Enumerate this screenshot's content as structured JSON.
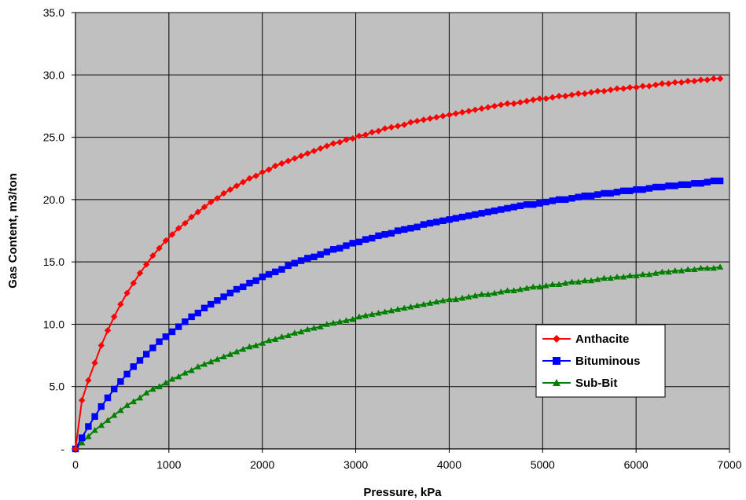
{
  "chart_data": {
    "type": "line",
    "title": "",
    "xlabel": "Pressure, kPa",
    "ylabel": "Gas Content, m3/ton",
    "xlim": [
      0,
      7000
    ],
    "ylim": [
      0,
      35
    ],
    "x_ticks": [
      0,
      1000,
      2000,
      3000,
      4000,
      5000,
      6000,
      7000
    ],
    "x_tick_labels": [
      "0",
      "1000",
      "2000",
      "3000",
      "4000",
      "5000",
      "6000",
      "7000"
    ],
    "y_ticks": [
      0,
      5,
      10,
      15,
      20,
      25,
      30,
      35
    ],
    "y_tick_labels": [
      "-",
      "5.0",
      "10.0",
      "15.0",
      "20.0",
      "25.0",
      "30.0",
      "35.0"
    ],
    "grid": true,
    "plot_background": "#c0c0c0",
    "legend_position": "lower-right",
    "series": [
      {
        "name": "Anthacite",
        "color": "#ff0000",
        "marker": "diamond",
        "x": [
          0,
          69,
          138,
          207,
          276,
          345,
          414,
          483,
          552,
          621,
          690,
          759,
          828,
          897,
          966,
          1035,
          1104,
          1173,
          1242,
          1311,
          1380,
          1449,
          1518,
          1587,
          1656,
          1725,
          1794,
          1863,
          1932,
          2001,
          2070,
          2139,
          2208,
          2277,
          2346,
          2415,
          2484,
          2553,
          2622,
          2691,
          2760,
          2829,
          2898,
          2967,
          3036,
          3105,
          3174,
          3243,
          3312,
          3381,
          3450,
          3519,
          3588,
          3657,
          3726,
          3795,
          3864,
          3933,
          4002,
          4071,
          4140,
          4209,
          4278,
          4347,
          4416,
          4485,
          4554,
          4623,
          4692,
          4761,
          4830,
          4899,
          4968,
          5037,
          5106,
          5175,
          5244,
          5313,
          5382,
          5451,
          5520,
          5589,
          5658,
          5727,
          5796,
          5865,
          5934,
          6003,
          6072,
          6141,
          6210,
          6279,
          6348,
          6417,
          6486,
          6555,
          6624,
          6693,
          6762,
          6831,
          6900
        ],
        "y": [
          0,
          3.9,
          5.5,
          6.9,
          8.3,
          9.5,
          10.6,
          11.6,
          12.5,
          13.3,
          14.1,
          14.8,
          15.5,
          16.1,
          16.7,
          17.2,
          17.7,
          18.1,
          18.6,
          19.0,
          19.4,
          19.8,
          20.1,
          20.5,
          20.8,
          21.1,
          21.4,
          21.7,
          21.9,
          22.2,
          22.4,
          22.7,
          22.9,
          23.1,
          23.3,
          23.5,
          23.7,
          23.9,
          24.1,
          24.3,
          24.5,
          24.6,
          24.8,
          24.9,
          25.1,
          25.2,
          25.4,
          25.5,
          25.7,
          25.8,
          25.9,
          26.0,
          26.2,
          26.3,
          26.4,
          26.5,
          26.6,
          26.7,
          26.8,
          26.9,
          27.0,
          27.1,
          27.2,
          27.3,
          27.4,
          27.5,
          27.6,
          27.7,
          27.7,
          27.8,
          27.9,
          28.0,
          28.1,
          28.1,
          28.2,
          28.3,
          28.3,
          28.4,
          28.5,
          28.5,
          28.6,
          28.7,
          28.7,
          28.8,
          28.9,
          28.9,
          29.0,
          29.0,
          29.1,
          29.1,
          29.2,
          29.3,
          29.3,
          29.4,
          29.4,
          29.5,
          29.5,
          29.6,
          29.6,
          29.7,
          29.7
        ]
      },
      {
        "name": "Bituminous",
        "color": "#0000ff",
        "marker": "square",
        "x": [
          0,
          69,
          138,
          207,
          276,
          345,
          414,
          483,
          552,
          621,
          690,
          759,
          828,
          897,
          966,
          1035,
          1104,
          1173,
          1242,
          1311,
          1380,
          1449,
          1518,
          1587,
          1656,
          1725,
          1794,
          1863,
          1932,
          2001,
          2070,
          2139,
          2208,
          2277,
          2346,
          2415,
          2484,
          2553,
          2622,
          2691,
          2760,
          2829,
          2898,
          2967,
          3036,
          3105,
          3174,
          3243,
          3312,
          3381,
          3450,
          3519,
          3588,
          3657,
          3726,
          3795,
          3864,
          3933,
          4002,
          4071,
          4140,
          4209,
          4278,
          4347,
          4416,
          4485,
          4554,
          4623,
          4692,
          4761,
          4830,
          4899,
          4968,
          5037,
          5106,
          5175,
          5244,
          5313,
          5382,
          5451,
          5520,
          5589,
          5658,
          5727,
          5796,
          5865,
          5934,
          6003,
          6072,
          6141,
          6210,
          6279,
          6348,
          6417,
          6486,
          6555,
          6624,
          6693,
          6762,
          6831,
          6900
        ],
        "y": [
          0,
          0.9,
          1.8,
          2.6,
          3.4,
          4.1,
          4.8,
          5.4,
          6.0,
          6.6,
          7.1,
          7.6,
          8.1,
          8.6,
          9.0,
          9.4,
          9.8,
          10.2,
          10.6,
          10.9,
          11.3,
          11.6,
          11.9,
          12.2,
          12.5,
          12.8,
          13.0,
          13.3,
          13.5,
          13.8,
          14.0,
          14.2,
          14.4,
          14.7,
          14.9,
          15.1,
          15.3,
          15.4,
          15.6,
          15.8,
          16.0,
          16.1,
          16.3,
          16.5,
          16.6,
          16.8,
          16.9,
          17.1,
          17.2,
          17.3,
          17.5,
          17.6,
          17.7,
          17.8,
          18.0,
          18.1,
          18.2,
          18.3,
          18.4,
          18.5,
          18.6,
          18.7,
          18.8,
          18.9,
          19.0,
          19.1,
          19.2,
          19.3,
          19.4,
          19.5,
          19.6,
          19.6,
          19.7,
          19.8,
          19.9,
          20.0,
          20.0,
          20.1,
          20.2,
          20.3,
          20.3,
          20.4,
          20.5,
          20.5,
          20.6,
          20.7,
          20.7,
          20.8,
          20.8,
          20.9,
          21.0,
          21.0,
          21.1,
          21.1,
          21.2,
          21.2,
          21.3,
          21.3,
          21.4,
          21.5,
          21.5
        ]
      },
      {
        "name": "Sub-Bit",
        "color": "#008000",
        "marker": "triangle",
        "x": [
          0,
          69,
          138,
          207,
          276,
          345,
          414,
          483,
          552,
          621,
          690,
          759,
          828,
          897,
          966,
          1035,
          1104,
          1173,
          1242,
          1311,
          1380,
          1449,
          1518,
          1587,
          1656,
          1725,
          1794,
          1863,
          1932,
          2001,
          2070,
          2139,
          2208,
          2277,
          2346,
          2415,
          2484,
          2553,
          2622,
          2691,
          2760,
          2829,
          2898,
          2967,
          3036,
          3105,
          3174,
          3243,
          3312,
          3381,
          3450,
          3519,
          3588,
          3657,
          3726,
          3795,
          3864,
          3933,
          4002,
          4071,
          4140,
          4209,
          4278,
          4347,
          4416,
          4485,
          4554,
          4623,
          4692,
          4761,
          4830,
          4899,
          4968,
          5037,
          5106,
          5175,
          5244,
          5313,
          5382,
          5451,
          5520,
          5589,
          5658,
          5727,
          5796,
          5865,
          5934,
          6003,
          6072,
          6141,
          6210,
          6279,
          6348,
          6417,
          6486,
          6555,
          6624,
          6693,
          6762,
          6831,
          6900
        ],
        "y": [
          0,
          0.5,
          1.0,
          1.5,
          1.9,
          2.3,
          2.7,
          3.1,
          3.5,
          3.8,
          4.1,
          4.5,
          4.8,
          5.0,
          5.3,
          5.6,
          5.8,
          6.1,
          6.3,
          6.6,
          6.8,
          7.0,
          7.2,
          7.4,
          7.6,
          7.8,
          8.0,
          8.2,
          8.3,
          8.5,
          8.7,
          8.8,
          9.0,
          9.1,
          9.3,
          9.4,
          9.6,
          9.7,
          9.8,
          10.0,
          10.1,
          10.2,
          10.3,
          10.4,
          10.6,
          10.7,
          10.8,
          10.9,
          11.0,
          11.1,
          11.2,
          11.3,
          11.4,
          11.5,
          11.6,
          11.7,
          11.8,
          11.9,
          12.0,
          12.0,
          12.1,
          12.2,
          12.3,
          12.4,
          12.4,
          12.5,
          12.6,
          12.7,
          12.7,
          12.8,
          12.9,
          13.0,
          13.0,
          13.1,
          13.2,
          13.2,
          13.3,
          13.4,
          13.4,
          13.5,
          13.5,
          13.6,
          13.7,
          13.7,
          13.8,
          13.8,
          13.9,
          13.9,
          14.0,
          14.0,
          14.1,
          14.2,
          14.2,
          14.3,
          14.3,
          14.4,
          14.4,
          14.5,
          14.5,
          14.5,
          14.6
        ]
      }
    ]
  }
}
